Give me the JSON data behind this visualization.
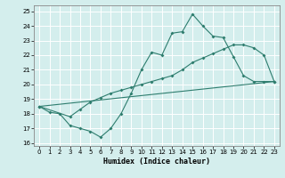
{
  "xlabel": "Humidex (Indice chaleur)",
  "xlim": [
    -0.5,
    23.5
  ],
  "ylim": [
    15.8,
    25.4
  ],
  "yticks": [
    16,
    17,
    18,
    19,
    20,
    21,
    22,
    23,
    24,
    25
  ],
  "xticks": [
    0,
    1,
    2,
    3,
    4,
    5,
    6,
    7,
    8,
    9,
    10,
    11,
    12,
    13,
    14,
    15,
    16,
    17,
    18,
    19,
    20,
    21,
    22,
    23
  ],
  "bg_color": "#d4eeed",
  "line_color": "#2e7d6e",
  "grid_color": "#b8d8d6",
  "line1_x": [
    0,
    1,
    2,
    3,
    4,
    5,
    6,
    7,
    8,
    9,
    10,
    11,
    12,
    13,
    14,
    15,
    16,
    17,
    18,
    19,
    20,
    21,
    22,
    23
  ],
  "line1_y": [
    18.5,
    18.1,
    18.0,
    17.2,
    17.0,
    16.8,
    16.4,
    17.0,
    18.0,
    19.4,
    21.0,
    22.2,
    22.0,
    23.5,
    23.6,
    24.8,
    24.0,
    23.3,
    23.2,
    21.9,
    20.6,
    20.2,
    20.2,
    20.2
  ],
  "line2_x": [
    0,
    3,
    4,
    5,
    6,
    7,
    8,
    9,
    10,
    11,
    12,
    13,
    14,
    15,
    16,
    17,
    18,
    19,
    20,
    21,
    22,
    23
  ],
  "line2_y": [
    18.5,
    17.8,
    18.3,
    18.8,
    19.1,
    19.4,
    19.6,
    19.8,
    20.0,
    20.2,
    20.4,
    20.6,
    21.0,
    21.5,
    21.8,
    22.1,
    22.4,
    22.7,
    22.7,
    22.5,
    22.0,
    20.2
  ],
  "line3_x": [
    0,
    23
  ],
  "line3_y": [
    18.5,
    20.2
  ]
}
